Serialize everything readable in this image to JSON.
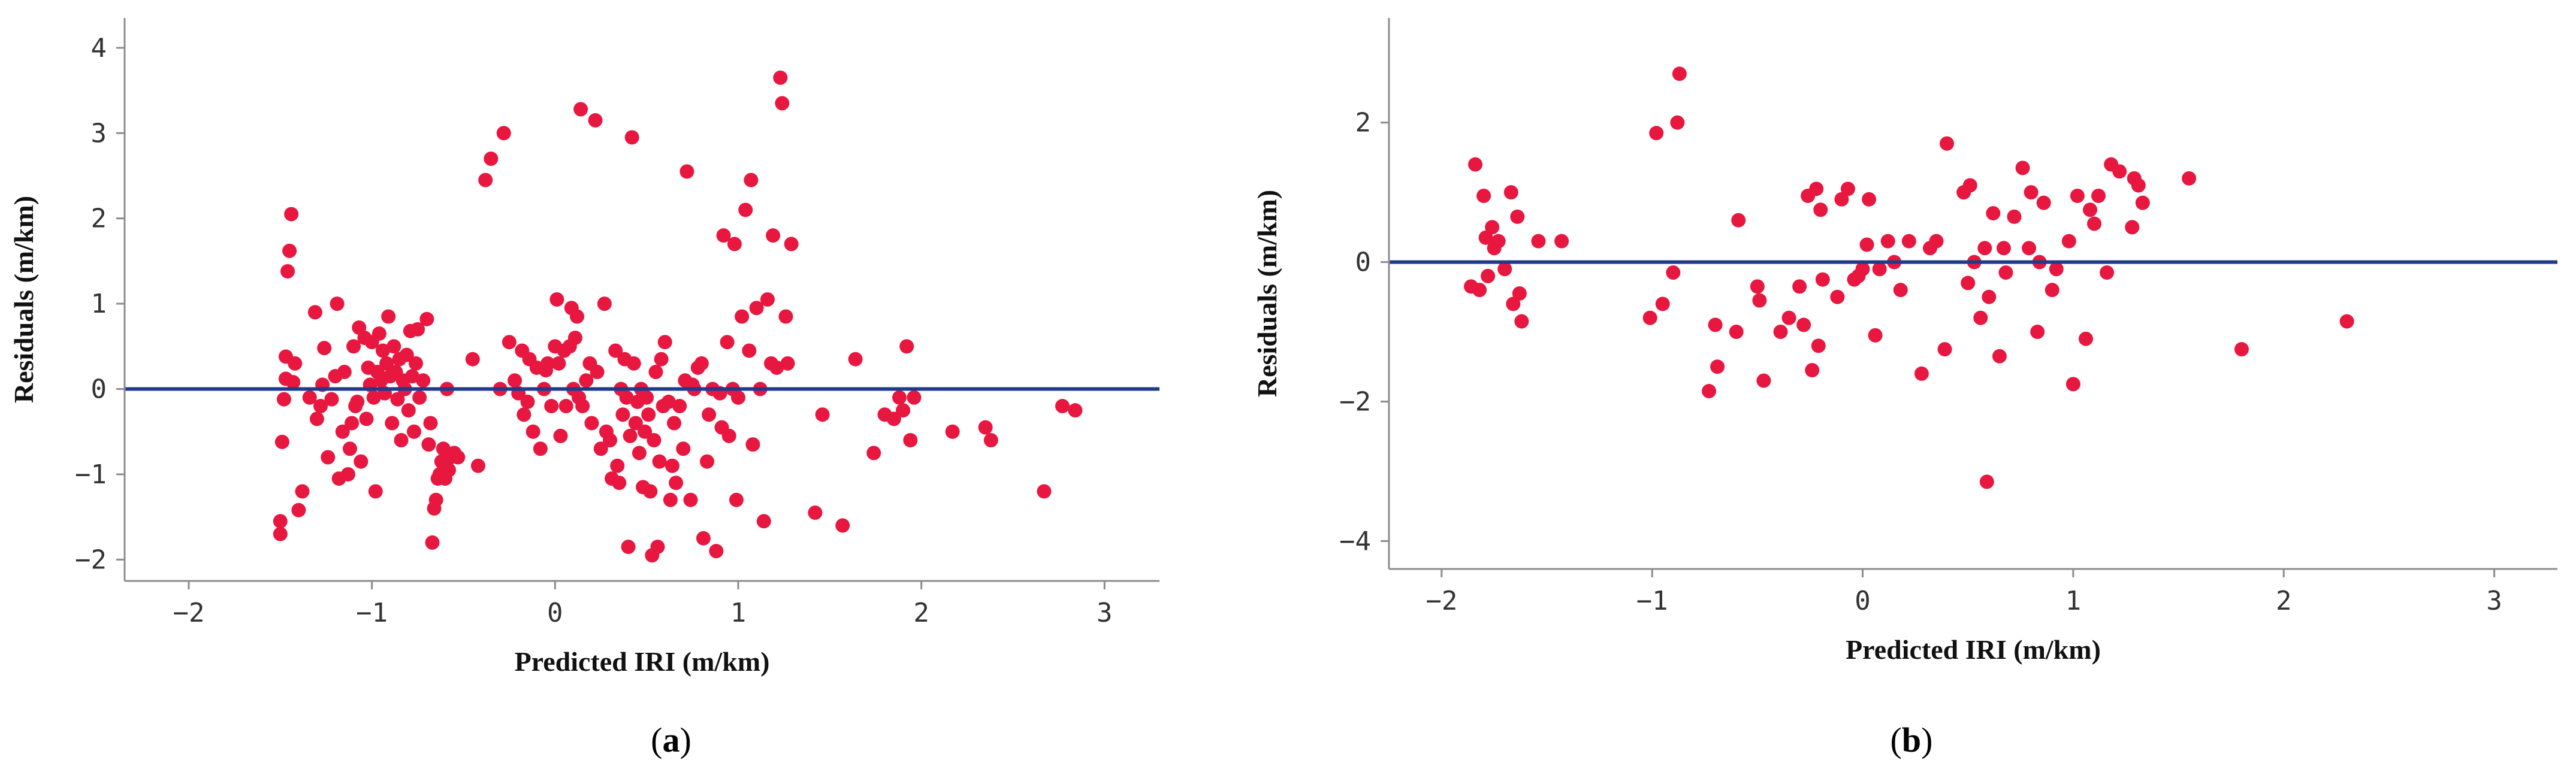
{
  "chart_data": [
    {
      "type": "scatter",
      "panel_label_pre": "(",
      "panel_label_letter": "a",
      "panel_label_post": ")",
      "xlabel": "Predicted IRI (m/km)",
      "ylabel": "Residuals (m/km)",
      "xlim": [
        -2.35,
        3.3
      ],
      "ylim": [
        -2.25,
        4.35
      ],
      "xticks": [
        -2,
        -1,
        0,
        1,
        2,
        3
      ],
      "yticks": [
        -2,
        -1,
        0,
        1,
        2,
        3,
        4
      ],
      "reference_line_y": 0,
      "colors": {
        "points": "#e8173f",
        "reference_line": "#1f3b8a",
        "axis": "#8c8c8c"
      },
      "points": [
        [
          -1.5,
          -1.55
        ],
        [
          -1.5,
          -1.7
        ],
        [
          -1.49,
          -0.62
        ],
        [
          -1.48,
          -0.12
        ],
        [
          -1.47,
          0.12
        ],
        [
          -1.47,
          0.38
        ],
        [
          -1.46,
          1.38
        ],
        [
          -1.45,
          1.62
        ],
        [
          -1.44,
          2.05
        ],
        [
          -1.43,
          0.08
        ],
        [
          -1.42,
          0.3
        ],
        [
          -1.4,
          -1.42
        ],
        [
          -1.38,
          -1.2
        ],
        [
          -1.34,
          -0.1
        ],
        [
          -1.31,
          0.9
        ],
        [
          -1.3,
          -0.35
        ],
        [
          -1.28,
          -0.2
        ],
        [
          -1.27,
          0.05
        ],
        [
          -1.26,
          0.48
        ],
        [
          -1.24,
          -0.8
        ],
        [
          -1.22,
          -0.12
        ],
        [
          -1.2,
          0.15
        ],
        [
          -1.19,
          1.0
        ],
        [
          -1.18,
          -1.05
        ],
        [
          -1.16,
          -0.5
        ],
        [
          -1.15,
          0.2
        ],
        [
          -1.13,
          -1.0
        ],
        [
          -1.12,
          -0.7
        ],
        [
          -1.11,
          -0.4
        ],
        [
          -1.1,
          0.5
        ],
        [
          -1.09,
          -0.2
        ],
        [
          -1.08,
          -0.15
        ],
        [
          -1.07,
          0.72
        ],
        [
          -1.06,
          -0.85
        ],
        [
          -1.04,
          0.6
        ],
        [
          -1.03,
          -0.35
        ],
        [
          -1.02,
          0.25
        ],
        [
          -1.01,
          0.05
        ],
        [
          -1.0,
          0.55
        ],
        [
          -0.99,
          -0.1
        ],
        [
          -0.98,
          -1.2
        ],
        [
          -0.97,
          0.2
        ],
        [
          -0.96,
          0.65
        ],
        [
          -0.95,
          0.1
        ],
        [
          -0.94,
          0.45
        ],
        [
          -0.93,
          -0.05
        ],
        [
          -0.92,
          0.3
        ],
        [
          -0.91,
          0.85
        ],
        [
          -0.9,
          0.15
        ],
        [
          -0.89,
          -0.4
        ],
        [
          -0.88,
          0.5
        ],
        [
          -0.87,
          0.2
        ],
        [
          -0.86,
          -0.12
        ],
        [
          -0.85,
          0.35
        ],
        [
          -0.84,
          -0.6
        ],
        [
          -0.83,
          0.1
        ],
        [
          -0.82,
          0.0
        ],
        [
          -0.81,
          0.4
        ],
        [
          -0.8,
          -0.25
        ],
        [
          -0.79,
          0.68
        ],
        [
          -0.78,
          0.15
        ],
        [
          -0.77,
          -0.5
        ],
        [
          -0.76,
          0.3
        ],
        [
          -0.75,
          0.7
        ],
        [
          -0.74,
          -0.1
        ],
        [
          -0.72,
          0.1
        ],
        [
          -0.7,
          0.82
        ],
        [
          -0.69,
          -0.65
        ],
        [
          -0.68,
          -0.4
        ],
        [
          -0.67,
          -1.8
        ],
        [
          -0.66,
          -1.4
        ],
        [
          -0.65,
          -1.3
        ],
        [
          -0.64,
          -1.05
        ],
        [
          -0.63,
          -1.0
        ],
        [
          -0.62,
          -0.85
        ],
        [
          -0.61,
          -0.7
        ],
        [
          -0.6,
          -1.05
        ],
        [
          -0.59,
          0.0
        ],
        [
          -0.58,
          -0.95
        ],
        [
          -0.57,
          -0.8
        ],
        [
          -0.55,
          -0.75
        ],
        [
          -0.53,
          -0.8
        ],
        [
          -0.45,
          0.35
        ],
        [
          -0.42,
          -0.9
        ],
        [
          -0.38,
          2.45
        ],
        [
          -0.35,
          2.7
        ],
        [
          -0.3,
          0.0
        ],
        [
          -0.28,
          3.0
        ],
        [
          -0.25,
          0.55
        ],
        [
          -0.22,
          0.1
        ],
        [
          -0.2,
          -0.05
        ],
        [
          -0.18,
          0.45
        ],
        [
          -0.17,
          -0.3
        ],
        [
          -0.15,
          -0.15
        ],
        [
          -0.14,
          0.35
        ],
        [
          -0.12,
          -0.5
        ],
        [
          -0.1,
          0.25
        ],
        [
          -0.08,
          -0.7
        ],
        [
          -0.06,
          0.0
        ],
        [
          -0.05,
          0.22
        ],
        [
          -0.04,
          0.3
        ],
        [
          -0.02,
          -0.2
        ],
        [
          0.0,
          0.5
        ],
        [
          0.01,
          1.05
        ],
        [
          0.02,
          0.3
        ],
        [
          0.03,
          -0.55
        ],
        [
          0.05,
          0.45
        ],
        [
          0.06,
          -0.2
        ],
        [
          0.08,
          0.5
        ],
        [
          0.09,
          0.95
        ],
        [
          0.1,
          0.0
        ],
        [
          0.11,
          0.6
        ],
        [
          0.12,
          0.85
        ],
        [
          0.13,
          -0.1
        ],
        [
          0.14,
          3.28
        ],
        [
          0.15,
          -0.2
        ],
        [
          0.17,
          0.1
        ],
        [
          0.19,
          0.3
        ],
        [
          0.2,
          -0.4
        ],
        [
          0.22,
          3.15
        ],
        [
          0.23,
          0.2
        ],
        [
          0.25,
          -0.7
        ],
        [
          0.27,
          1.0
        ],
        [
          0.28,
          -0.5
        ],
        [
          0.3,
          -0.6
        ],
        [
          0.31,
          -1.05
        ],
        [
          0.33,
          0.45
        ],
        [
          0.34,
          -0.9
        ],
        [
          0.35,
          -1.1
        ],
        [
          0.36,
          0.0
        ],
        [
          0.37,
          -0.3
        ],
        [
          0.38,
          0.35
        ],
        [
          0.39,
          -0.1
        ],
        [
          0.4,
          -1.85
        ],
        [
          0.41,
          -0.55
        ],
        [
          0.42,
          2.95
        ],
        [
          0.43,
          0.3
        ],
        [
          0.44,
          -0.4
        ],
        [
          0.45,
          -0.15
        ],
        [
          0.46,
          -0.75
        ],
        [
          0.47,
          0.0
        ],
        [
          0.48,
          -1.15
        ],
        [
          0.49,
          -0.5
        ],
        [
          0.5,
          -0.1
        ],
        [
          0.51,
          -0.3
        ],
        [
          0.52,
          -1.2
        ],
        [
          0.53,
          -1.95
        ],
        [
          0.54,
          -0.6
        ],
        [
          0.55,
          0.2
        ],
        [
          0.56,
          -1.85
        ],
        [
          0.57,
          -0.85
        ],
        [
          0.58,
          0.35
        ],
        [
          0.59,
          -0.2
        ],
        [
          0.6,
          0.55
        ],
        [
          0.62,
          -0.15
        ],
        [
          0.63,
          -1.3
        ],
        [
          0.64,
          -0.9
        ],
        [
          0.65,
          -0.4
        ],
        [
          0.66,
          -1.1
        ],
        [
          0.68,
          -0.2
        ],
        [
          0.7,
          -0.7
        ],
        [
          0.71,
          0.1
        ],
        [
          0.72,
          2.55
        ],
        [
          0.74,
          -1.3
        ],
        [
          0.75,
          0.05
        ],
        [
          0.76,
          0.0
        ],
        [
          0.78,
          0.25
        ],
        [
          0.8,
          0.3
        ],
        [
          0.81,
          -1.75
        ],
        [
          0.83,
          -0.85
        ],
        [
          0.84,
          -0.3
        ],
        [
          0.86,
          0.0
        ],
        [
          0.88,
          -1.9
        ],
        [
          0.9,
          -0.05
        ],
        [
          0.91,
          -0.45
        ],
        [
          0.92,
          1.8
        ],
        [
          0.94,
          0.55
        ],
        [
          0.95,
          -0.55
        ],
        [
          0.97,
          0.0
        ],
        [
          0.98,
          1.7
        ],
        [
          0.99,
          -1.3
        ],
        [
          1.0,
          -0.1
        ],
        [
          1.02,
          0.85
        ],
        [
          1.04,
          2.1
        ],
        [
          1.06,
          0.45
        ],
        [
          1.07,
          2.45
        ],
        [
          1.08,
          -0.65
        ],
        [
          1.1,
          0.95
        ],
        [
          1.12,
          0.0
        ],
        [
          1.14,
          -1.55
        ],
        [
          1.16,
          1.05
        ],
        [
          1.18,
          0.3
        ],
        [
          1.19,
          1.8
        ],
        [
          1.21,
          0.25
        ],
        [
          1.23,
          3.65
        ],
        [
          1.24,
          3.35
        ],
        [
          1.26,
          0.85
        ],
        [
          1.27,
          0.3
        ],
        [
          1.29,
          1.7
        ],
        [
          1.42,
          -1.45
        ],
        [
          1.46,
          -0.3
        ],
        [
          1.57,
          -1.6
        ],
        [
          1.64,
          0.35
        ],
        [
          1.74,
          -0.75
        ],
        [
          1.8,
          -0.3
        ],
        [
          1.85,
          -0.35
        ],
        [
          1.88,
          -0.1
        ],
        [
          1.9,
          -0.25
        ],
        [
          1.92,
          0.5
        ],
        [
          1.94,
          -0.6
        ],
        [
          1.96,
          -0.1
        ],
        [
          2.17,
          -0.5
        ],
        [
          2.35,
          -0.45
        ],
        [
          2.38,
          -0.6
        ],
        [
          2.67,
          -1.2
        ],
        [
          2.77,
          -0.2
        ],
        [
          2.84,
          -0.25
        ]
      ]
    },
    {
      "type": "scatter",
      "panel_label_pre": "(",
      "panel_label_letter": "b",
      "panel_label_post": ")",
      "xlabel": "Predicted IRI (m/km)",
      "ylabel": "Residuals (m/km)",
      "xlim": [
        -2.25,
        3.3
      ],
      "ylim": [
        -4.4,
        3.5
      ],
      "xticks": [
        -2,
        -1,
        0,
        1,
        2,
        3
      ],
      "yticks": [
        -4,
        -2,
        0,
        2
      ],
      "reference_line_y": 0,
      "colors": {
        "points": "#e8173f",
        "reference_line": "#1f3b8a",
        "axis": "#8c8c8c"
      },
      "points": [
        [
          -1.86,
          -0.35
        ],
        [
          -1.84,
          1.4
        ],
        [
          -1.82,
          -0.4
        ],
        [
          -1.8,
          0.95
        ],
        [
          -1.79,
          0.35
        ],
        [
          -1.78,
          -0.2
        ],
        [
          -1.76,
          0.5
        ],
        [
          -1.75,
          0.2
        ],
        [
          -1.73,
          0.3
        ],
        [
          -1.7,
          -0.1
        ],
        [
          -1.67,
          1.0
        ],
        [
          -1.66,
          -0.6
        ],
        [
          -1.64,
          0.65
        ],
        [
          -1.63,
          -0.45
        ],
        [
          -1.62,
          -0.85
        ],
        [
          -1.54,
          0.3
        ],
        [
          -1.43,
          0.3
        ],
        [
          -1.01,
          -0.8
        ],
        [
          -0.98,
          1.85
        ],
        [
          -0.95,
          -0.6
        ],
        [
          -0.9,
          -0.15
        ],
        [
          -0.88,
          2.0
        ],
        [
          -0.87,
          2.7
        ],
        [
          -0.73,
          -1.85
        ],
        [
          -0.7,
          -0.9
        ],
        [
          -0.69,
          -1.5
        ],
        [
          -0.6,
          -1.0
        ],
        [
          -0.59,
          0.6
        ],
        [
          -0.5,
          -0.35
        ],
        [
          -0.49,
          -0.55
        ],
        [
          -0.47,
          -1.7
        ],
        [
          -0.39,
          -1.0
        ],
        [
          -0.35,
          -0.8
        ],
        [
          -0.3,
          -0.35
        ],
        [
          -0.28,
          -0.9
        ],
        [
          -0.26,
          0.95
        ],
        [
          -0.24,
          -1.55
        ],
        [
          -0.22,
          1.05
        ],
        [
          -0.21,
          -1.2
        ],
        [
          -0.2,
          0.75
        ],
        [
          -0.19,
          -0.25
        ],
        [
          -0.12,
          -0.5
        ],
        [
          -0.1,
          0.9
        ],
        [
          -0.07,
          1.05
        ],
        [
          -0.04,
          -0.25
        ],
        [
          -0.02,
          -0.2
        ],
        [
          0.0,
          -0.1
        ],
        [
          0.02,
          0.25
        ],
        [
          0.03,
          0.9
        ],
        [
          0.06,
          -1.05
        ],
        [
          0.08,
          -0.1
        ],
        [
          0.12,
          0.3
        ],
        [
          0.15,
          0.0
        ],
        [
          0.18,
          -0.4
        ],
        [
          0.22,
          0.3
        ],
        [
          0.28,
          -1.6
        ],
        [
          0.32,
          0.2
        ],
        [
          0.35,
          0.3
        ],
        [
          0.39,
          -1.25
        ],
        [
          0.4,
          1.7
        ],
        [
          0.48,
          1.0
        ],
        [
          0.5,
          -0.3
        ],
        [
          0.51,
          1.1
        ],
        [
          0.53,
          0.0
        ],
        [
          0.56,
          -0.8
        ],
        [
          0.58,
          0.2
        ],
        [
          0.59,
          -3.15
        ],
        [
          0.6,
          -0.5
        ],
        [
          0.62,
          0.7
        ],
        [
          0.65,
          -1.35
        ],
        [
          0.67,
          0.2
        ],
        [
          0.68,
          -0.15
        ],
        [
          0.72,
          0.65
        ],
        [
          0.76,
          1.35
        ],
        [
          0.79,
          0.2
        ],
        [
          0.8,
          1.0
        ],
        [
          0.83,
          -1.0
        ],
        [
          0.84,
          0.0
        ],
        [
          0.86,
          0.85
        ],
        [
          0.9,
          -0.4
        ],
        [
          0.92,
          -0.1
        ],
        [
          0.98,
          0.3
        ],
        [
          1.0,
          -1.75
        ],
        [
          1.02,
          0.95
        ],
        [
          1.06,
          -1.1
        ],
        [
          1.08,
          0.75
        ],
        [
          1.1,
          0.55
        ],
        [
          1.12,
          0.95
        ],
        [
          1.16,
          -0.15
        ],
        [
          1.18,
          1.4
        ],
        [
          1.22,
          1.3
        ],
        [
          1.28,
          0.5
        ],
        [
          1.29,
          1.2
        ],
        [
          1.31,
          1.1
        ],
        [
          1.33,
          0.85
        ],
        [
          1.55,
          1.2
        ],
        [
          1.8,
          -1.25
        ],
        [
          2.3,
          -0.85
        ]
      ]
    }
  ]
}
